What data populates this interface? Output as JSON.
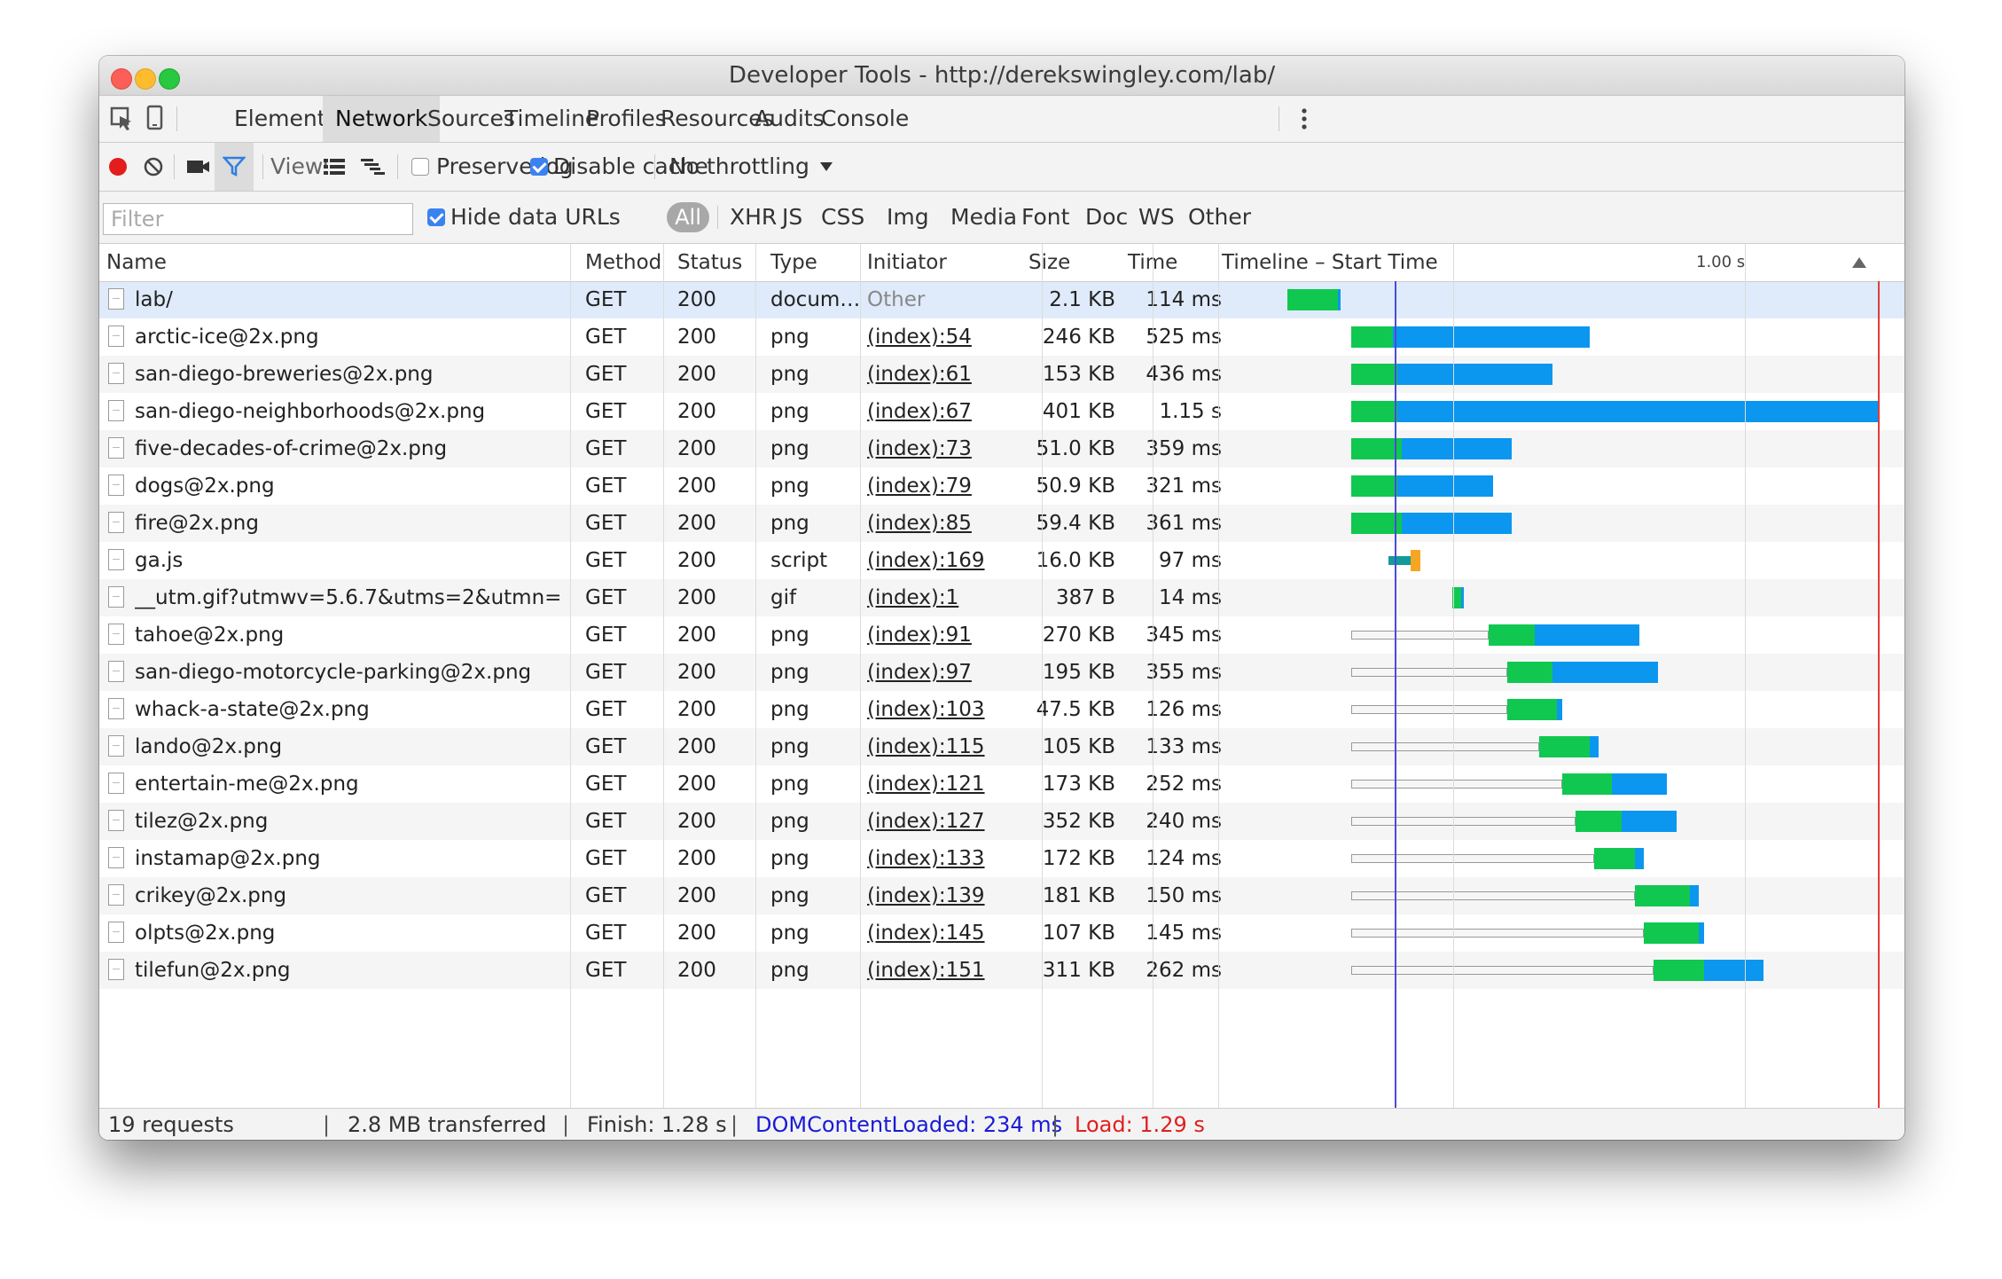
{
  "window": {
    "title": "Developer Tools - http://derekswingley.com/lab/"
  },
  "tabs": [
    "Elements",
    "Network",
    "Sources",
    "Timeline",
    "Profiles",
    "Resources",
    "Audits",
    "Console"
  ],
  "toolbar": {
    "view_label": "View:",
    "preserve_log": "Preserve log",
    "preserve_log_checked": false,
    "disable_cache": "Disable cache",
    "disable_cache_checked": true,
    "throttling": "No throttling"
  },
  "filterbar": {
    "placeholder": "Filter",
    "hide_data_urls": "Hide data URLs",
    "hide_data_urls_checked": true,
    "types": [
      "All",
      "XHR",
      "JS",
      "CSS",
      "Img",
      "Media",
      "Font",
      "Doc",
      "WS",
      "Other"
    ],
    "selected_type": "All"
  },
  "columns": {
    "name": "Name",
    "method": "Method",
    "status": "Status",
    "type": "Type",
    "initiator": "Initiator",
    "size": "Size",
    "time": "Time",
    "timeline": "Timeline – Start Time",
    "timeline_tick": "1.00 s"
  },
  "colors": {
    "waiting": "#10c850",
    "download": "#0b96f0",
    "script_wait": "#159a9a",
    "script_exec": "#f5a623",
    "dom_line": "#4a4adb",
    "load_line": "#e33c3c"
  },
  "requests": [
    {
      "name": "lab/",
      "method": "GET",
      "status": "200",
      "type": "docum…",
      "initiator": "Other",
      "size": "2.1 KB",
      "time": "114 ms",
      "start_s": 0.0,
      "wait_s": 0.11,
      "recv_s": 0.005,
      "queue_s": 0
    },
    {
      "name": "arctic-ice@2x.png",
      "method": "GET",
      "status": "200",
      "type": "png",
      "initiator": "(index):54",
      "size": "246 KB",
      "time": "525 ms",
      "start_s": 0.14,
      "wait_s": 0.09,
      "recv_s": 0.43,
      "queue_s": 0
    },
    {
      "name": "san-diego-breweries@2x.png",
      "method": "GET",
      "status": "200",
      "type": "png",
      "initiator": "(index):61",
      "size": "153 KB",
      "time": "436 ms",
      "start_s": 0.14,
      "wait_s": 0.1,
      "recv_s": 0.34,
      "queue_s": 0
    },
    {
      "name": "san-diego-neighborhoods@2x.png",
      "method": "GET",
      "status": "200",
      "type": "png",
      "initiator": "(index):67",
      "size": "401 KB",
      "time": "1.15 s",
      "start_s": 0.14,
      "wait_s": 0.1,
      "recv_s": 1.05,
      "queue_s": 0
    },
    {
      "name": "five-decades-of-crime@2x.png",
      "method": "GET",
      "status": "200",
      "type": "png",
      "initiator": "(index):73",
      "size": "51.0 KB",
      "time": "359 ms",
      "start_s": 0.14,
      "wait_s": 0.11,
      "recv_s": 0.24,
      "queue_s": 0
    },
    {
      "name": "dogs@2x.png",
      "method": "GET",
      "status": "200",
      "type": "png",
      "initiator": "(index):79",
      "size": "50.9 KB",
      "time": "321 ms",
      "start_s": 0.14,
      "wait_s": 0.1,
      "recv_s": 0.21,
      "queue_s": 0
    },
    {
      "name": "fire@2x.png",
      "method": "GET",
      "status": "200",
      "type": "png",
      "initiator": "(index):85",
      "size": "59.4 KB",
      "time": "361 ms",
      "start_s": 0.14,
      "wait_s": 0.11,
      "recv_s": 0.24,
      "queue_s": 0
    },
    {
      "name": "ga.js",
      "method": "GET",
      "status": "200",
      "type": "script",
      "initiator": "(index):169",
      "size": "16.0 KB",
      "time": "97 ms",
      "start_s": 0.22,
      "wait_s": 0.05,
      "recv_s": 0.02,
      "queue_s": 0
    },
    {
      "name": "__utm.gif?utmwv=5.6.7&utms=2&utmn=…",
      "method": "GET",
      "status": "200",
      "type": "gif",
      "initiator": "(index):1",
      "size": "387 B",
      "time": "14 ms",
      "start_s": 0.36,
      "wait_s": 0.02,
      "recv_s": 0.005,
      "queue_s": 0
    },
    {
      "name": "tahoe@2x.png",
      "method": "GET",
      "status": "200",
      "type": "png",
      "initiator": "(index):91",
      "size": "270 KB",
      "time": "345 ms",
      "start_s": 0.14,
      "wait_s": 0.1,
      "recv_s": 0.23,
      "queue_s": 0.3
    },
    {
      "name": "san-diego-motorcycle-parking@2x.png",
      "method": "GET",
      "status": "200",
      "type": "png",
      "initiator": "(index):97",
      "size": "195 KB",
      "time": "355 ms",
      "start_s": 0.14,
      "wait_s": 0.1,
      "recv_s": 0.23,
      "queue_s": 0.34
    },
    {
      "name": "whack-a-state@2x.png",
      "method": "GET",
      "status": "200",
      "type": "png",
      "initiator": "(index):103",
      "size": "47.5 KB",
      "time": "126 ms",
      "start_s": 0.14,
      "wait_s": 0.11,
      "recv_s": 0.01,
      "queue_s": 0.34
    },
    {
      "name": "lando@2x.png",
      "method": "GET",
      "status": "200",
      "type": "png",
      "initiator": "(index):115",
      "size": "105 KB",
      "time": "133 ms",
      "start_s": 0.14,
      "wait_s": 0.11,
      "recv_s": 0.02,
      "queue_s": 0.41
    },
    {
      "name": "entertain-me@2x.png",
      "method": "GET",
      "status": "200",
      "type": "png",
      "initiator": "(index):121",
      "size": "173 KB",
      "time": "252 ms",
      "start_s": 0.14,
      "wait_s": 0.11,
      "recv_s": 0.12,
      "queue_s": 0.46
    },
    {
      "name": "tilez@2x.png",
      "method": "GET",
      "status": "200",
      "type": "png",
      "initiator": "(index):127",
      "size": "352 KB",
      "time": "240 ms",
      "start_s": 0.14,
      "wait_s": 0.1,
      "recv_s": 0.12,
      "queue_s": 0.49
    },
    {
      "name": "instamap@2x.png",
      "method": "GET",
      "status": "200",
      "type": "png",
      "initiator": "(index):133",
      "size": "172 KB",
      "time": "124 ms",
      "start_s": 0.14,
      "wait_s": 0.09,
      "recv_s": 0.02,
      "queue_s": 0.53
    },
    {
      "name": "crikey@2x.png",
      "method": "GET",
      "status": "200",
      "type": "png",
      "initiator": "(index):139",
      "size": "181 KB",
      "time": "150 ms",
      "start_s": 0.14,
      "wait_s": 0.12,
      "recv_s": 0.02,
      "queue_s": 0.62
    },
    {
      "name": "olpts@2x.png",
      "method": "GET",
      "status": "200",
      "type": "png",
      "initiator": "(index):145",
      "size": "107 KB",
      "time": "145 ms",
      "start_s": 0.14,
      "wait_s": 0.12,
      "recv_s": 0.01,
      "queue_s": 0.64
    },
    {
      "name": "tilefun@2x.png",
      "method": "GET",
      "status": "200",
      "type": "png",
      "initiator": "(index):151",
      "size": "311 KB",
      "time": "262 ms",
      "start_s": 0.14,
      "wait_s": 0.11,
      "recv_s": 0.13,
      "queue_s": 0.66
    }
  ],
  "timeline_markers": {
    "domcontentloaded_s": 0.234,
    "load_s": 1.29,
    "tick_s": 1.0
  },
  "summary": {
    "requests": "19 requests",
    "transferred": "2.8 MB transferred",
    "finish": "Finish: 1.28 s",
    "domcontentloaded": "DOMContentLoaded: 234 ms",
    "load": "Load: 1.29 s"
  }
}
